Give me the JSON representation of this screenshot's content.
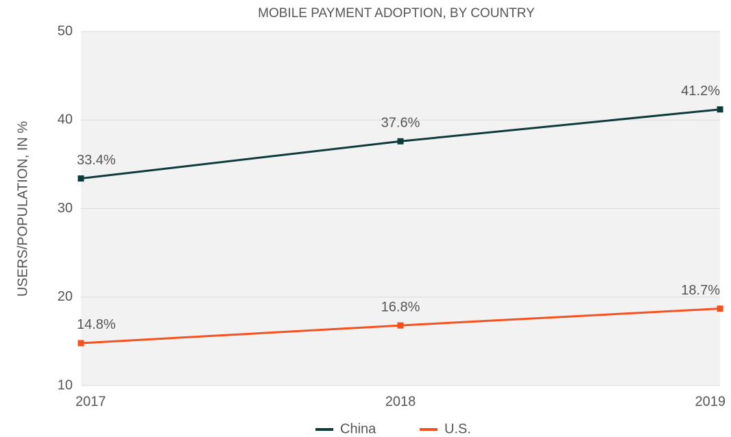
{
  "chart_data": {
    "type": "line",
    "title": "MOBILE PAYMENT ADOPTION, BY COUNTRY",
    "y_label": "USERS/POPULATION, IN %",
    "x": [
      2017,
      2018,
      2019
    ],
    "xlim": [
      2017,
      2019
    ],
    "xticks": [
      2017,
      2018,
      2019
    ],
    "ylim": [
      10,
      50
    ],
    "yticks": [
      10,
      20,
      30,
      40,
      50
    ],
    "grid": true,
    "series": [
      {
        "name": "China",
        "color": "#0f3a3c",
        "values": [
          33.4,
          37.6,
          41.2
        ],
        "value_labels": [
          "33.4%",
          "37.6%",
          "41.2%"
        ]
      },
      {
        "name": "U.S.",
        "color": "#f4511e",
        "values": [
          14.8,
          16.8,
          18.7
        ],
        "value_labels": [
          "14.8%",
          "16.8%",
          "18.7%"
        ]
      }
    ]
  }
}
